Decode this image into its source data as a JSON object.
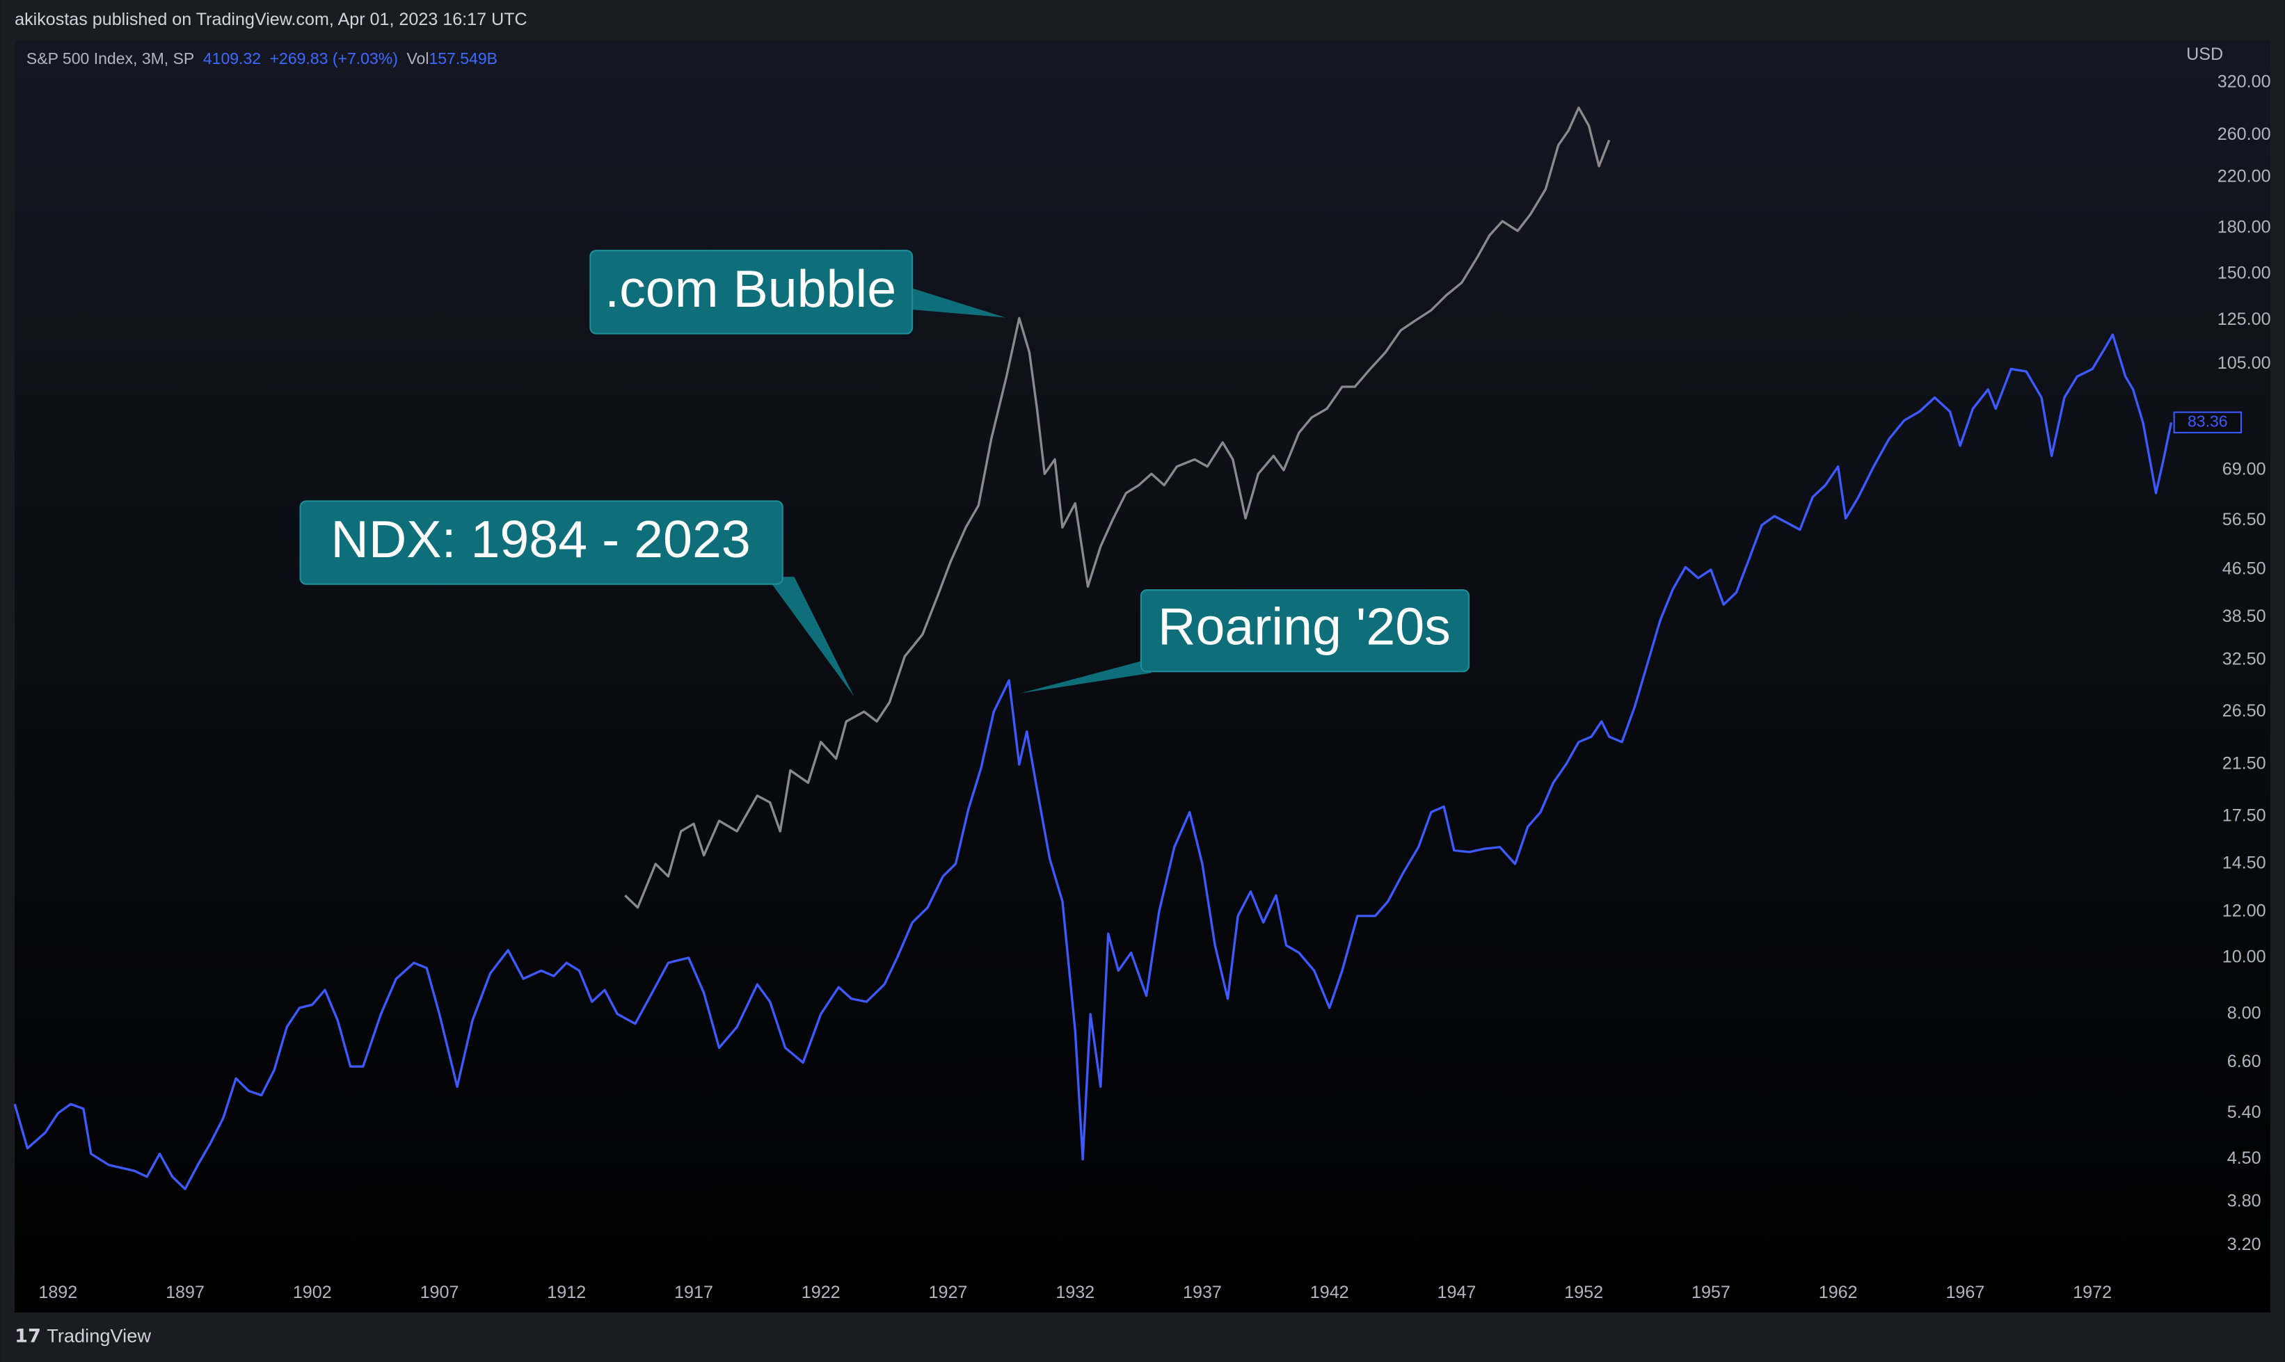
{
  "header": {
    "publisher": "akikostas published on TradingView.com, Apr 01, 2023 16:17 UTC",
    "symbol": "S&P 500 Index, 3M, SP",
    "price": "4109.32",
    "change": "+269.83 (+7.03%)",
    "vol_label": "Vol",
    "vol": "157.549B",
    "currency": "USD",
    "footer": "TradingView"
  },
  "chart_data": {
    "type": "line",
    "log_scale": true,
    "grid": false,
    "annotations": [
      ".com Bubble",
      "NDX: 1984 - 2023",
      "Roaring '20s"
    ],
    "xlim": [
      1890.3,
      1975.1
    ],
    "xticks": [
      1892,
      1897,
      1902,
      1907,
      1912,
      1917,
      1922,
      1927,
      1932,
      1937,
      1942,
      1947,
      1952,
      1957,
      1962,
      1967,
      1972
    ],
    "ylim": [
      2.85,
      378
    ],
    "yticks": [
      {
        "value": 320,
        "label": "320.00"
      },
      {
        "value": 260,
        "label": "260.00"
      },
      {
        "value": 220,
        "label": "220.00"
      },
      {
        "value": 180,
        "label": "180.00"
      },
      {
        "value": 150,
        "label": "150.00"
      },
      {
        "value": 125,
        "label": "125.00"
      },
      {
        "value": 105,
        "label": "105.00"
      },
      {
        "value": 69,
        "label": "69.00"
      },
      {
        "value": 56.5,
        "label": "56.50"
      },
      {
        "value": 46.5,
        "label": "46.50"
      },
      {
        "value": 38.5,
        "label": "38.50"
      },
      {
        "value": 32.5,
        "label": "32.50"
      },
      {
        "value": 26.5,
        "label": "26.50"
      },
      {
        "value": 21.5,
        "label": "21.50"
      },
      {
        "value": 17.5,
        "label": "17.50"
      },
      {
        "value": 14.5,
        "label": "14.50"
      },
      {
        "value": 12,
        "label": "12.00"
      },
      {
        "value": 10,
        "label": "10.00"
      },
      {
        "value": 8,
        "label": "8.00"
      },
      {
        "value": 6.6,
        "label": "6.60"
      },
      {
        "value": 5.4,
        "label": "5.40"
      },
      {
        "value": 4.5,
        "label": "4.50"
      },
      {
        "value": 3.8,
        "label": "3.80"
      },
      {
        "value": 3.2,
        "label": "3.20"
      }
    ],
    "series": [
      {
        "name": "S&P 500 Index",
        "color": "#3d5afe",
        "last_label": "83.36",
        "x": [
          1890.3,
          1890.8,
          1891.5,
          1892,
          1892.5,
          1893,
          1893.3,
          1894,
          1895,
          1895.5,
          1896,
          1896.5,
          1897,
          1897.5,
          1898,
          1898.5,
          1899,
          1899.5,
          1900,
          1900.5,
          1901,
          1901.5,
          1902,
          1902.5,
          1903,
          1903.5,
          1904,
          1904.7,
          1905.3,
          1906,
          1906.5,
          1907,
          1907.7,
          1908.3,
          1909,
          1909.7,
          1910.3,
          1911,
          1911.5,
          1912,
          1912.5,
          1913,
          1913.5,
          1914,
          1914.7,
          1915.3,
          1916,
          1916.8,
          1917.4,
          1918,
          1918.7,
          1919.5,
          1920,
          1920.6,
          1921.3,
          1922,
          1922.7,
          1923.2,
          1923.8,
          1924.5,
          1925,
          1925.6,
          1926.2,
          1926.8,
          1927.3,
          1927.8,
          1928.3,
          1928.8,
          1929.4,
          1929.8,
          1930.1,
          1930.5,
          1931,
          1931.5,
          1932,
          1932.3,
          1932.6,
          1933,
          1933.3,
          1933.7,
          1934.2,
          1934.8,
          1935.3,
          1935.9,
          1936.5,
          1937,
          1937.5,
          1938,
          1938.4,
          1938.9,
          1939.4,
          1939.9,
          1940.3,
          1940.8,
          1941.4,
          1942,
          1942.5,
          1943.1,
          1943.8,
          1944.3,
          1944.9,
          1945.5,
          1946,
          1946.5,
          1946.9,
          1947.5,
          1948.1,
          1948.7,
          1949.3,
          1949.8,
          1950.3,
          1950.8,
          1951.3,
          1951.8,
          1952.3,
          1952.7,
          1953,
          1953.5,
          1954,
          1954.5,
          1955,
          1955.5,
          1956,
          1956.5,
          1957,
          1957.5,
          1958,
          1958.5,
          1959,
          1959.5,
          1960,
          1960.5,
          1961,
          1961.5,
          1962,
          1962.3,
          1962.8,
          1963.4,
          1964,
          1964.6,
          1965.2,
          1965.8,
          1966.4,
          1966.8,
          1967.3,
          1967.9,
          1968.2,
          1968.8,
          1969.4,
          1970,
          1970.4,
          1970.9,
          1971.4,
          1972,
          1972.5,
          1972.8,
          1973.3,
          1973.6,
          1974,
          1974.5,
          1974.8,
          1975.1
        ],
        "values": [
          5.6,
          4.7,
          5.0,
          5.4,
          5.6,
          5.5,
          4.6,
          4.4,
          4.3,
          4.2,
          4.6,
          4.2,
          4.0,
          4.4,
          4.8,
          5.3,
          6.2,
          5.9,
          5.8,
          6.4,
          7.6,
          8.2,
          8.3,
          8.8,
          7.8,
          6.5,
          6.5,
          8.0,
          9.2,
          9.8,
          9.6,
          8.0,
          6.0,
          7.8,
          9.4,
          10.3,
          9.2,
          9.5,
          9.3,
          9.8,
          9.5,
          8.4,
          8.8,
          8.0,
          7.7,
          8.6,
          9.8,
          10.0,
          8.7,
          7.0,
          7.6,
          9.0,
          8.4,
          7.0,
          6.6,
          8.0,
          8.9,
          8.5,
          8.4,
          9.0,
          10.0,
          11.5,
          12.2,
          13.8,
          14.5,
          18.0,
          21.2,
          26.5,
          30.0,
          21.5,
          24.5,
          19.5,
          14.8,
          12.5,
          7.5,
          4.5,
          8.0,
          6.0,
          11.0,
          9.5,
          10.2,
          8.6,
          12.0,
          15.5,
          17.8,
          14.5,
          10.5,
          8.5,
          11.8,
          13.0,
          11.5,
          12.8,
          10.5,
          10.2,
          9.5,
          8.2,
          9.5,
          11.8,
          11.8,
          12.5,
          14.0,
          15.5,
          17.8,
          18.2,
          15.3,
          15.2,
          15.4,
          15.5,
          14.5,
          16.8,
          17.8,
          20.0,
          21.5,
          23.5,
          24.0,
          25.5,
          24.0,
          23.5,
          27.0,
          32.0,
          38.0,
          43.0,
          47.0,
          45.0,
          46.5,
          40.5,
          42.5,
          48.5,
          55.5,
          57.5,
          56.0,
          54.5,
          62.0,
          65.0,
          70.0,
          57.0,
          62.0,
          70.0,
          78.0,
          84.0,
          87.0,
          92.0,
          87.0,
          76.0,
          88.0,
          95.0,
          88.0,
          103.0,
          102.0,
          92.0,
          73.0,
          92.0,
          100.0,
          103.0,
          112.0,
          118.0,
          100.0,
          95.0,
          83.0,
          63.0,
          72.0,
          83.36
        ]
      },
      {
        "name": "NDX",
        "color": "#8a8a8e",
        "x": [
          1914.3,
          1914.8,
          1915.5,
          1916,
          1916.5,
          1917,
          1917.4,
          1918,
          1918.7,
          1919.5,
          1920,
          1920.4,
          1920.8,
          1921.5,
          1922,
          1922.6,
          1923,
          1923.7,
          1924.2,
          1924.7,
          1925.3,
          1926,
          1926.6,
          1927.1,
          1927.7,
          1928.2,
          1928.7,
          1929.3,
          1929.8,
          1930.2,
          1930.5,
          1930.8,
          1931.2,
          1931.5,
          1932,
          1932.5,
          1933,
          1933.5,
          1934,
          1934.5,
          1935,
          1935.5,
          1936,
          1936.7,
          1937.2,
          1937.8,
          1938.2,
          1938.7,
          1939.2,
          1939.8,
          1940.2,
          1940.8,
          1941.3,
          1941.9,
          1942.5,
          1943,
          1943.6,
          1944.2,
          1944.8,
          1945.4,
          1946,
          1946.6,
          1947.2,
          1947.8,
          1948.3,
          1948.8,
          1949.4,
          1949.9,
          1950.5,
          1951,
          1951.4,
          1951.8,
          1952.2,
          1952.6,
          1953
        ],
        "values": [
          12.8,
          12.2,
          14.5,
          13.8,
          16.5,
          17.0,
          15.0,
          17.2,
          16.5,
          19.0,
          18.5,
          16.5,
          21.0,
          20.0,
          23.5,
          22.0,
          25.5,
          26.5,
          25.5,
          27.5,
          33.0,
          36.0,
          42.0,
          48.0,
          55.0,
          60.0,
          78.0,
          100.0,
          126.0,
          110.0,
          88.0,
          68.0,
          72.0,
          55.0,
          60.5,
          43.5,
          51.0,
          57.0,
          63.0,
          65.0,
          68.0,
          65.0,
          70.0,
          72.0,
          70.0,
          77.0,
          72.0,
          57.0,
          68.0,
          73.0,
          69.0,
          80.0,
          85.0,
          88.0,
          96.0,
          96.0,
          103.0,
          110.0,
          120.0,
          125.0,
          130.0,
          138.0,
          145.0,
          160.0,
          175.0,
          185.0,
          178.0,
          190.0,
          210.0,
          250.0,
          265.0,
          290.0,
          270.0,
          230.0,
          255.0
        ]
      }
    ]
  }
}
